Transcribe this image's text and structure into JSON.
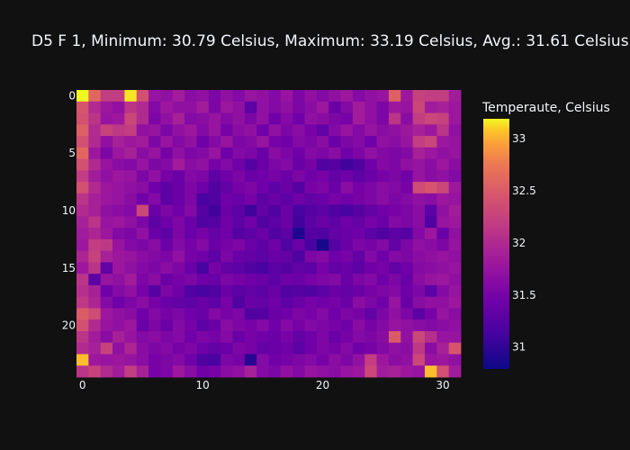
{
  "chart_data": {
    "type": "heatmap",
    "title": "D5 F 1, Minimum: 30.79 Celsius, Maximum: 33.19 Celsius, Avg.: 31.61 Celsius",
    "colorbar_title": "Temperaute, Celsius",
    "colorscale": "plasma",
    "zmin": 30.79,
    "zmax": 33.19,
    "x_ticks": [
      0,
      10,
      20,
      30
    ],
    "y_ticks": [
      0,
      5,
      10,
      15,
      20
    ],
    "colorbar_ticks": [
      31,
      31.5,
      32,
      32.5,
      33
    ],
    "y_axis": "reversed",
    "grid": false,
    "z": [
      [
        33.19,
        32.6,
        32.2,
        32.2,
        33.15,
        32.4,
        31.75,
        31.7,
        31.85,
        31.65,
        31.7,
        31.55,
        31.7,
        31.6,
        31.75,
        31.7,
        31.6,
        31.75,
        31.55,
        31.7,
        31.6,
        31.7,
        31.8,
        31.6,
        31.7,
        31.75,
        32.55,
        31.8,
        32.25,
        32.2,
        32.2,
        31.85
      ],
      [
        32.45,
        32.0,
        31.8,
        31.7,
        32.1,
        32.0,
        31.6,
        31.8,
        31.7,
        31.7,
        31.85,
        31.55,
        31.8,
        31.7,
        31.3,
        31.7,
        31.6,
        31.7,
        31.55,
        31.65,
        31.8,
        31.4,
        31.6,
        31.85,
        31.7,
        31.55,
        31.8,
        31.75,
        32.3,
        31.85,
        31.9,
        31.8
      ],
      [
        32.4,
        32.1,
        31.75,
        31.8,
        32.3,
        32.0,
        31.55,
        31.7,
        31.9,
        31.6,
        31.65,
        31.75,
        31.6,
        31.7,
        31.55,
        31.7,
        31.45,
        31.6,
        31.45,
        31.7,
        31.65,
        31.55,
        31.5,
        31.85,
        31.7,
        31.55,
        32.1,
        31.65,
        32.2,
        32.3,
        32.25,
        31.8
      ],
      [
        32.55,
        32.0,
        32.25,
        32.15,
        32.2,
        31.7,
        31.75,
        31.55,
        31.7,
        31.8,
        31.6,
        31.75,
        31.5,
        31.65,
        31.7,
        31.45,
        31.7,
        31.55,
        31.65,
        31.5,
        31.35,
        31.6,
        31.75,
        31.6,
        31.75,
        31.65,
        31.7,
        31.8,
        31.9,
        31.8,
        32.1,
        31.7
      ],
      [
        32.4,
        32.0,
        31.7,
        31.9,
        31.8,
        31.85,
        31.55,
        31.75,
        31.6,
        31.7,
        31.45,
        31.6,
        31.75,
        31.55,
        31.6,
        31.75,
        31.5,
        31.45,
        31.6,
        31.55,
        31.65,
        31.4,
        31.55,
        31.6,
        31.45,
        31.7,
        31.65,
        31.75,
        32.2,
        32.3,
        31.8,
        31.75
      ],
      [
        32.6,
        31.8,
        31.55,
        31.8,
        31.9,
        31.65,
        31.75,
        31.5,
        31.7,
        31.55,
        31.6,
        31.75,
        31.45,
        31.6,
        31.55,
        31.4,
        31.65,
        31.55,
        31.45,
        31.6,
        31.55,
        31.65,
        31.45,
        31.55,
        31.7,
        31.6,
        31.55,
        31.6,
        31.9,
        31.8,
        31.7,
        31.75
      ],
      [
        32.4,
        32.0,
        31.75,
        31.65,
        31.6,
        31.75,
        31.55,
        31.6,
        31.85,
        31.65,
        31.7,
        31.5,
        31.6,
        31.45,
        31.25,
        31.4,
        31.55,
        31.6,
        31.4,
        31.5,
        31.2,
        31.25,
        31.1,
        31.2,
        31.45,
        31.6,
        31.55,
        31.7,
        31.75,
        31.65,
        31.8,
        31.65
      ],
      [
        32.2,
        31.85,
        31.7,
        31.8,
        31.75,
        31.55,
        31.7,
        31.5,
        31.4,
        31.6,
        31.55,
        31.3,
        31.45,
        31.55,
        31.4,
        31.45,
        31.5,
        31.4,
        31.55,
        31.45,
        31.5,
        31.35,
        31.45,
        31.3,
        31.4,
        31.5,
        31.55,
        31.45,
        31.75,
        31.65,
        31.7,
        31.6
      ],
      [
        32.4,
        32.0,
        31.8,
        31.75,
        31.7,
        31.65,
        31.45,
        31.3,
        31.4,
        31.55,
        31.45,
        31.2,
        31.35,
        31.5,
        31.55,
        31.45,
        31.3,
        31.4,
        31.25,
        31.5,
        31.55,
        31.4,
        31.65,
        31.5,
        31.55,
        31.65,
        31.6,
        31.5,
        32.35,
        32.45,
        32.3,
        31.8
      ],
      [
        32.1,
        31.9,
        31.8,
        31.75,
        31.65,
        31.45,
        31.6,
        31.3,
        31.4,
        31.55,
        31.15,
        31.2,
        31.45,
        31.4,
        31.5,
        31.3,
        31.4,
        31.3,
        31.45,
        31.35,
        31.4,
        31.5,
        31.45,
        31.5,
        31.55,
        31.65,
        31.55,
        31.6,
        31.7,
        31.65,
        31.8,
        31.75
      ],
      [
        32.0,
        31.9,
        31.7,
        31.65,
        31.6,
        32.3,
        31.4,
        31.55,
        31.45,
        31.6,
        31.25,
        31.1,
        31.4,
        31.3,
        31.1,
        31.35,
        31.2,
        31.4,
        31.15,
        31.25,
        31.3,
        31.2,
        31.15,
        31.25,
        31.35,
        31.45,
        31.5,
        31.55,
        31.65,
        31.3,
        31.7,
        31.85
      ],
      [
        31.9,
        32.1,
        31.75,
        31.8,
        31.7,
        31.55,
        31.3,
        31.45,
        31.55,
        31.4,
        31.2,
        31.25,
        31.45,
        31.3,
        31.45,
        31.2,
        31.3,
        31.4,
        31.1,
        31.3,
        31.4,
        31.3,
        31.45,
        31.35,
        31.5,
        31.4,
        31.6,
        31.55,
        31.65,
        31.2,
        31.75,
        31.8
      ],
      [
        31.85,
        31.95,
        31.8,
        31.6,
        31.55,
        31.7,
        31.4,
        31.3,
        31.55,
        31.4,
        31.5,
        31.35,
        31.45,
        31.25,
        31.3,
        31.4,
        31.2,
        31.3,
        30.9,
        31.25,
        31.2,
        31.35,
        31.4,
        31.45,
        31.3,
        31.2,
        31.3,
        31.25,
        31.6,
        31.8,
        31.4,
        31.7
      ],
      [
        31.8,
        32.2,
        32.15,
        31.75,
        31.6,
        31.55,
        31.65,
        31.4,
        31.6,
        31.5,
        31.6,
        31.4,
        31.5,
        31.55,
        31.4,
        31.3,
        31.45,
        31.2,
        31.4,
        31.15,
        30.85,
        31.25,
        31.4,
        31.55,
        31.5,
        31.6,
        31.35,
        31.55,
        31.7,
        31.65,
        31.55,
        31.75
      ],
      [
        31.95,
        32.25,
        31.9,
        31.8,
        31.75,
        31.65,
        31.6,
        31.55,
        31.7,
        31.5,
        31.45,
        31.3,
        31.55,
        31.4,
        31.35,
        31.3,
        31.4,
        31.35,
        31.2,
        31.55,
        31.6,
        31.45,
        31.5,
        31.35,
        31.6,
        31.45,
        31.6,
        31.55,
        31.65,
        31.7,
        31.75,
        31.7
      ],
      [
        31.8,
        32.1,
        31.35,
        31.8,
        31.7,
        31.6,
        31.55,
        31.65,
        31.55,
        31.4,
        31.15,
        31.5,
        31.35,
        31.3,
        31.2,
        31.15,
        31.3,
        31.25,
        31.35,
        31.3,
        31.5,
        31.35,
        31.4,
        31.3,
        31.45,
        31.5,
        31.35,
        31.45,
        31.6,
        31.65,
        31.7,
        31.75
      ],
      [
        32.1,
        31.3,
        31.75,
        31.7,
        31.85,
        31.55,
        31.65,
        31.4,
        31.5,
        31.55,
        31.45,
        31.4,
        31.55,
        31.5,
        31.45,
        31.4,
        31.3,
        31.45,
        31.4,
        31.5,
        31.55,
        31.6,
        31.4,
        31.55,
        31.6,
        31.45,
        31.55,
        31.4,
        31.65,
        31.75,
        31.8,
        31.7
      ],
      [
        32.05,
        31.9,
        31.45,
        31.6,
        31.7,
        31.5,
        31.25,
        31.55,
        31.45,
        31.2,
        31.15,
        31.2,
        31.4,
        31.3,
        31.35,
        31.3,
        31.4,
        31.2,
        31.25,
        31.2,
        31.3,
        31.4,
        31.35,
        31.4,
        31.5,
        31.55,
        31.6,
        31.45,
        31.55,
        31.3,
        31.6,
        31.75
      ],
      [
        32.15,
        31.95,
        31.6,
        31.45,
        31.55,
        31.65,
        31.5,
        31.4,
        31.35,
        31.3,
        31.4,
        31.3,
        31.5,
        31.2,
        31.4,
        31.35,
        31.45,
        31.3,
        31.4,
        31.5,
        31.45,
        31.5,
        31.4,
        31.65,
        31.55,
        31.45,
        31.75,
        31.4,
        31.65,
        31.7,
        31.7,
        31.8
      ],
      [
        32.5,
        32.35,
        31.8,
        31.7,
        31.65,
        31.45,
        31.6,
        31.5,
        31.55,
        31.45,
        31.4,
        31.6,
        31.5,
        31.55,
        31.2,
        31.25,
        31.4,
        31.45,
        31.55,
        31.5,
        31.6,
        31.45,
        31.55,
        31.5,
        31.35,
        31.55,
        31.7,
        31.55,
        31.3,
        31.5,
        31.75,
        31.65
      ],
      [
        32.4,
        32.0,
        31.75,
        31.7,
        31.8,
        31.4,
        31.55,
        31.4,
        31.6,
        31.5,
        31.3,
        31.4,
        31.65,
        31.55,
        31.5,
        31.6,
        31.45,
        31.6,
        31.5,
        31.6,
        31.55,
        31.5,
        31.45,
        31.65,
        31.5,
        31.6,
        31.75,
        31.7,
        31.65,
        31.6,
        31.65,
        31.7
      ],
      [
        32.1,
        31.85,
        31.65,
        31.9,
        31.75,
        31.6,
        31.65,
        31.55,
        31.6,
        31.45,
        31.55,
        31.5,
        31.6,
        31.4,
        31.5,
        31.45,
        31.4,
        31.5,
        31.35,
        31.45,
        31.55,
        31.4,
        31.5,
        31.6,
        31.55,
        31.65,
        32.5,
        31.7,
        32.3,
        32.05,
        31.75,
        31.75
      ],
      [
        32.0,
        31.9,
        32.25,
        31.7,
        31.95,
        31.65,
        31.55,
        31.6,
        31.5,
        31.55,
        31.45,
        31.35,
        31.4,
        31.55,
        31.5,
        31.35,
        31.4,
        31.45,
        31.3,
        31.45,
        31.55,
        31.5,
        31.6,
        31.45,
        31.5,
        31.6,
        31.7,
        31.65,
        32.15,
        31.65,
        31.9,
        32.45
      ],
      [
        33.05,
        31.8,
        31.75,
        31.8,
        31.75,
        31.65,
        31.5,
        31.55,
        31.6,
        31.45,
        31.2,
        31.15,
        31.55,
        31.5,
        30.95,
        31.6,
        31.45,
        31.5,
        31.55,
        31.6,
        31.5,
        31.65,
        31.55,
        31.7,
        32.2,
        31.8,
        31.65,
        31.7,
        32.3,
        31.75,
        31.8,
        31.7
      ],
      [
        32.1,
        32.25,
        32.0,
        31.85,
        32.2,
        31.9,
        31.5,
        31.55,
        31.8,
        31.65,
        31.45,
        31.5,
        31.65,
        31.7,
        31.9,
        31.6,
        31.55,
        31.7,
        31.6,
        31.75,
        31.7,
        31.65,
        31.75,
        31.8,
        32.3,
        31.85,
        31.9,
        31.8,
        31.75,
        33.05,
        32.4,
        31.85
      ]
    ]
  }
}
